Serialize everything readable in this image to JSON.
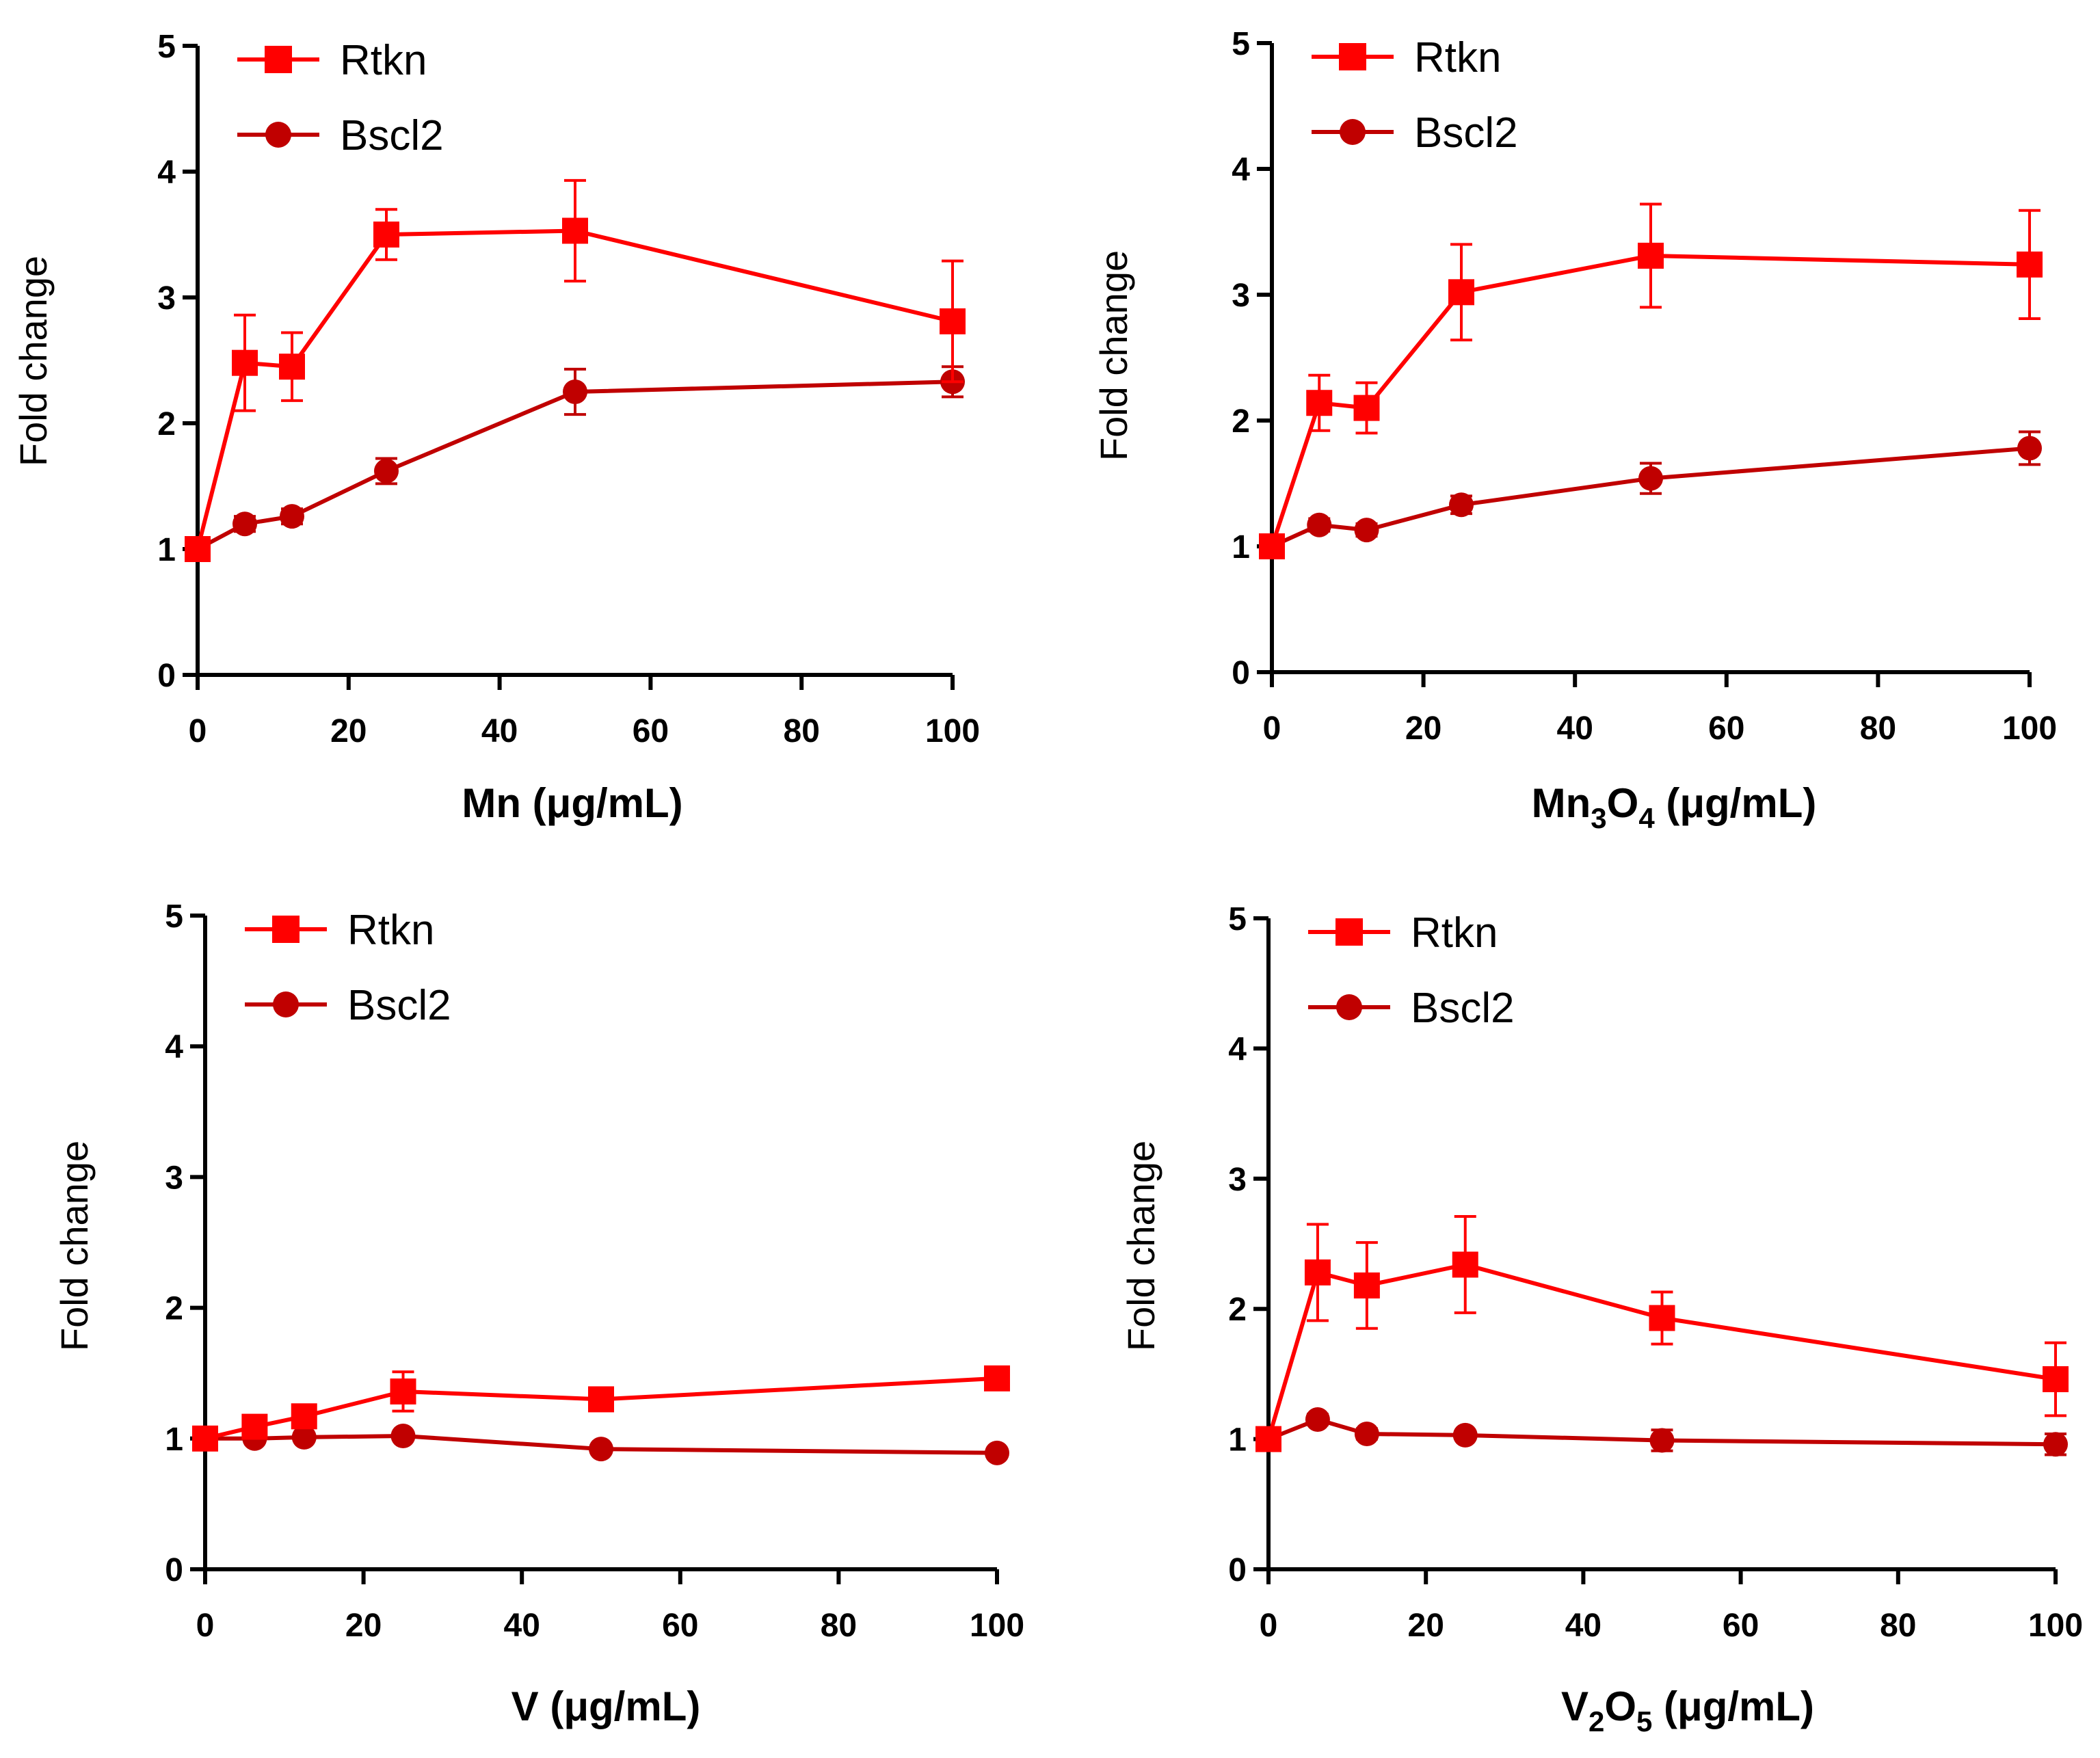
{
  "figure": {
    "background": "#ffffff",
    "colors": {
      "rtkn": "#ff0000",
      "bscl2": "#c00000",
      "axis": "#000000"
    }
  },
  "chart_data": [
    {
      "type": "line",
      "panel": "Mn",
      "xlabel": {
        "prefix": "Mn",
        "unit": "(μg/mL)"
      },
      "ylabel": "Fold change",
      "xlim": [
        0,
        100
      ],
      "ylim": [
        0,
        5
      ],
      "xticks": [
        "0",
        "20",
        "40",
        "60",
        "80",
        "100"
      ],
      "yticks": [
        "0",
        "1",
        "2",
        "3",
        "4",
        "5"
      ],
      "x": [
        0,
        6.25,
        12.5,
        25,
        50,
        100
      ],
      "legend_position": "top-left",
      "series": [
        {
          "name": "Rtkn",
          "marker": "square",
          "values": [
            1.0,
            2.48,
            2.45,
            3.5,
            3.53,
            2.81
          ],
          "errors": [
            0.0,
            0.38,
            0.27,
            0.2,
            0.4,
            0.48
          ]
        },
        {
          "name": "Bscl2",
          "marker": "circle",
          "values": [
            1.0,
            1.2,
            1.26,
            1.62,
            2.25,
            2.33
          ],
          "errors": [
            0.0,
            0.06,
            0.06,
            0.1,
            0.18,
            0.12
          ]
        }
      ]
    },
    {
      "type": "line",
      "panel": "Mn3O4",
      "xlabel": {
        "prefix": "Mn",
        "sub1": "3",
        "mid": "O",
        "sub2": "4",
        "unit": "(μg/mL)"
      },
      "ylabel": "Fold change",
      "xlim": [
        0,
        100
      ],
      "ylim": [
        0,
        5
      ],
      "xticks": [
        "0",
        "20",
        "40",
        "60",
        "80",
        "100"
      ],
      "yticks": [
        "0",
        "1",
        "2",
        "3",
        "4",
        "5"
      ],
      "x": [
        0,
        6.25,
        12.5,
        25,
        50,
        100
      ],
      "legend_position": "top-left",
      "series": [
        {
          "name": "Rtkn",
          "marker": "square",
          "values": [
            1.0,
            2.14,
            2.1,
            3.02,
            3.31,
            3.24
          ],
          "errors": [
            0.0,
            0.22,
            0.2,
            0.38,
            0.41,
            0.43
          ]
        },
        {
          "name": "Bscl2",
          "marker": "circle",
          "values": [
            1.0,
            1.17,
            1.13,
            1.33,
            1.54,
            1.78
          ],
          "errors": [
            0.0,
            0.05,
            0.05,
            0.07,
            0.12,
            0.13
          ]
        }
      ]
    },
    {
      "type": "line",
      "panel": "V",
      "xlabel": {
        "prefix": "V",
        "unit": "(μg/mL)"
      },
      "ylabel": "Fold change",
      "xlim": [
        0,
        100
      ],
      "ylim": [
        0,
        5
      ],
      "xticks": [
        "0",
        "20",
        "40",
        "60",
        "80",
        "100"
      ],
      "yticks": [
        "0",
        "1",
        "2",
        "3",
        "4",
        "5"
      ],
      "x": [
        0,
        6.25,
        12.5,
        25,
        50,
        100
      ],
      "legend_position": "top-left",
      "series": [
        {
          "name": "Rtkn",
          "marker": "square",
          "values": [
            1.0,
            1.09,
            1.17,
            1.36,
            1.3,
            1.46
          ],
          "errors": [
            0.0,
            0.06,
            0.07,
            0.15,
            0.05,
            0.05
          ]
        },
        {
          "name": "Bscl2",
          "marker": "circle",
          "values": [
            1.0,
            1.0,
            1.01,
            1.02,
            0.92,
            0.89
          ],
          "errors": [
            0.0,
            0.03,
            0.03,
            0.03,
            0.03,
            0.03
          ]
        }
      ]
    },
    {
      "type": "line",
      "panel": "V2O5",
      "xlabel": {
        "prefix": "V",
        "sub1": "2",
        "mid": "O",
        "sub2": "5",
        "unit": "(μg/mL)"
      },
      "ylabel": "Fold change",
      "xlim": [
        0,
        100
      ],
      "ylim": [
        0,
        5
      ],
      "xticks": [
        "0",
        "20",
        "40",
        "60",
        "80",
        "100"
      ],
      "yticks": [
        "0",
        "1",
        "2",
        "3",
        "4",
        "5"
      ],
      "x": [
        0,
        6.25,
        12.5,
        25,
        50,
        100
      ],
      "legend_position": "top-left",
      "series": [
        {
          "name": "Rtkn",
          "marker": "square",
          "values": [
            1.0,
            2.28,
            2.18,
            2.34,
            1.93,
            1.46
          ],
          "errors": [
            0.0,
            0.37,
            0.33,
            0.37,
            0.2,
            0.28
          ]
        },
        {
          "name": "Bscl2",
          "marker": "circle",
          "values": [
            1.0,
            1.15,
            1.04,
            1.03,
            0.99,
            0.96
          ],
          "errors": [
            0.0,
            0.04,
            0.04,
            0.03,
            0.08,
            0.08
          ]
        }
      ]
    }
  ]
}
